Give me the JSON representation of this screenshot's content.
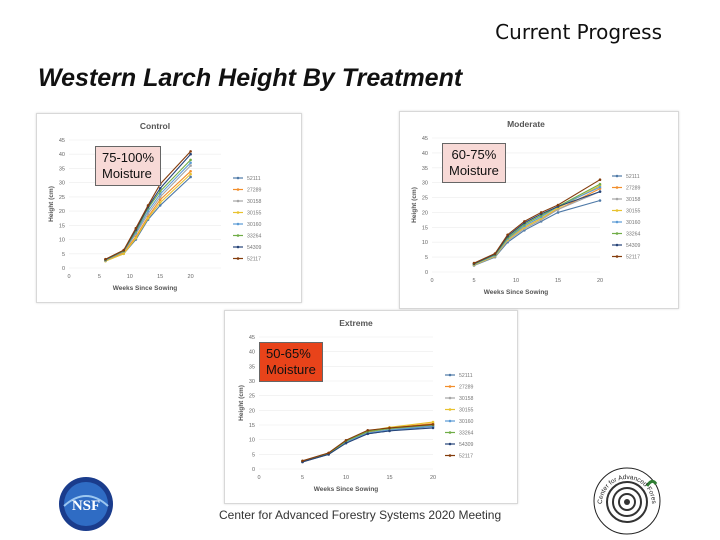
{
  "slide": {
    "header": "Current Progress",
    "title": "Western Larch Height By Treatment",
    "footer": "Center for Advanced Forestry Systems 2020 Meeting",
    "logos": {
      "nsf_text": "NSF",
      "cafs_text": "Center for Advanced Forestry Systems"
    }
  },
  "chart_data": [
    {
      "id": "control",
      "type": "line",
      "title": "Control",
      "badge": "75-100%\nMoisture",
      "badge_color": "#f7d9d6",
      "xlabel": "Weeks Since Sowing",
      "ylabel": "Height (cm)",
      "xlim": [
        0,
        25
      ],
      "ylim": [
        0,
        45
      ],
      "xticks": [
        0,
        5,
        10,
        15,
        20
      ],
      "yticks": [
        0,
        5,
        10,
        15,
        20,
        25,
        30,
        35,
        40,
        45
      ],
      "x": [
        6,
        9,
        11,
        13,
        15,
        20
      ],
      "series": [
        {
          "name": "52111",
          "color": "#4e79a7",
          "values": [
            2.5,
            5,
            10,
            17,
            22,
            32
          ]
        },
        {
          "name": "27289",
          "color": "#f28e2b",
          "values": [
            2.6,
            5.5,
            11,
            18,
            24,
            34
          ]
        },
        {
          "name": "30158",
          "color": "#a5a5a5",
          "values": [
            2.8,
            5.8,
            12,
            19,
            25,
            36
          ]
        },
        {
          "name": "30155",
          "color": "#e8c22e",
          "values": [
            2.4,
            5,
            10.5,
            17.5,
            23,
            33
          ]
        },
        {
          "name": "30160",
          "color": "#5b9bd5",
          "values": [
            2.7,
            5.9,
            12.5,
            20,
            26,
            37
          ]
        },
        {
          "name": "33264",
          "color": "#70ad47",
          "values": [
            2.9,
            6,
            13,
            21,
            27,
            38
          ]
        },
        {
          "name": "54309",
          "color": "#264478",
          "values": [
            3,
            6.2,
            13.5,
            21.5,
            28,
            40
          ]
        },
        {
          "name": "52117",
          "color": "#843c0c",
          "values": [
            3.1,
            6.3,
            14,
            22,
            29.5,
            41
          ]
        }
      ]
    },
    {
      "id": "moderate",
      "type": "line",
      "title": "Moderate",
      "badge": "60-75%\nMoisture",
      "badge_color": "#f7d9d6",
      "xlabel": "Weeks Since Sowing",
      "ylabel": "Height (cm)",
      "xlim": [
        0,
        20
      ],
      "ylim": [
        0,
        45
      ],
      "xticks": [
        0,
        5,
        10,
        15,
        20
      ],
      "yticks": [
        0,
        5,
        10,
        15,
        20,
        25,
        30,
        35,
        40,
        45
      ],
      "x": [
        5,
        7.5,
        9,
        11,
        13,
        15,
        20
      ],
      "series": [
        {
          "name": "52111",
          "color": "#4e79a7",
          "values": [
            2.2,
            5,
            10,
            14,
            17,
            20,
            24
          ]
        },
        {
          "name": "27289",
          "color": "#f28e2b",
          "values": [
            2.5,
            5.5,
            11,
            15,
            18,
            21,
            28
          ]
        },
        {
          "name": "30158",
          "color": "#a5a5a5",
          "values": [
            2.3,
            5.2,
            10.5,
            14.5,
            17.5,
            21,
            27
          ]
        },
        {
          "name": "30155",
          "color": "#e8c22e",
          "values": [
            2.4,
            5.3,
            10.8,
            15,
            18,
            21.5,
            29
          ]
        },
        {
          "name": "30160",
          "color": "#5b9bd5",
          "values": [
            2.6,
            5.6,
            11.2,
            15.5,
            18.5,
            22,
            28.5
          ]
        },
        {
          "name": "33264",
          "color": "#70ad47",
          "values": [
            2.7,
            5.8,
            11.5,
            16,
            19,
            22,
            29.5
          ]
        },
        {
          "name": "54309",
          "color": "#264478",
          "values": [
            2.8,
            6,
            12,
            16.5,
            19.5,
            22,
            27
          ]
        },
        {
          "name": "52117",
          "color": "#843c0c",
          "values": [
            3,
            6.2,
            12.5,
            17,
            20,
            22.5,
            31
          ]
        }
      ]
    },
    {
      "id": "extreme",
      "type": "line",
      "title": "Extreme",
      "badge": "50-65%\nMoisture",
      "badge_color": "#e8431a",
      "xlabel": "Weeks Since Sowing",
      "ylabel": "Height (cm)",
      "xlim": [
        0,
        20
      ],
      "ylim": [
        0,
        45
      ],
      "xticks": [
        0,
        5,
        10,
        15,
        20
      ],
      "yticks": [
        0,
        5,
        10,
        15,
        20,
        25,
        30,
        35,
        40,
        45
      ],
      "x": [
        5,
        8,
        10,
        12.5,
        15,
        20
      ],
      "series": [
        {
          "name": "52111",
          "color": "#4e79a7",
          "values": [
            2.5,
            5,
            9,
            12,
            13,
            14.5
          ]
        },
        {
          "name": "27289",
          "color": "#f28e2b",
          "values": [
            2.6,
            5.2,
            9.3,
            12.5,
            14,
            15.5
          ]
        },
        {
          "name": "30158",
          "color": "#a5a5a5",
          "values": [
            2.4,
            5,
            9,
            12.2,
            13.5,
            14.8
          ]
        },
        {
          "name": "30155",
          "color": "#e8c22e",
          "values": [
            2.7,
            5.4,
            9.6,
            13,
            14.2,
            16
          ]
        },
        {
          "name": "30160",
          "color": "#5b9bd5",
          "values": [
            2.5,
            5.1,
            9.2,
            12.3,
            13.3,
            14.6
          ]
        },
        {
          "name": "33264",
          "color": "#70ad47",
          "values": [
            2.6,
            5.3,
            9.5,
            12.8,
            13.8,
            15
          ]
        },
        {
          "name": "54309",
          "color": "#264478",
          "values": [
            2.4,
            5,
            8.8,
            12,
            13,
            14
          ]
        },
        {
          "name": "52117",
          "color": "#843c0c",
          "values": [
            2.8,
            5.5,
            9.8,
            13.2,
            14,
            15.2
          ]
        }
      ]
    }
  ]
}
